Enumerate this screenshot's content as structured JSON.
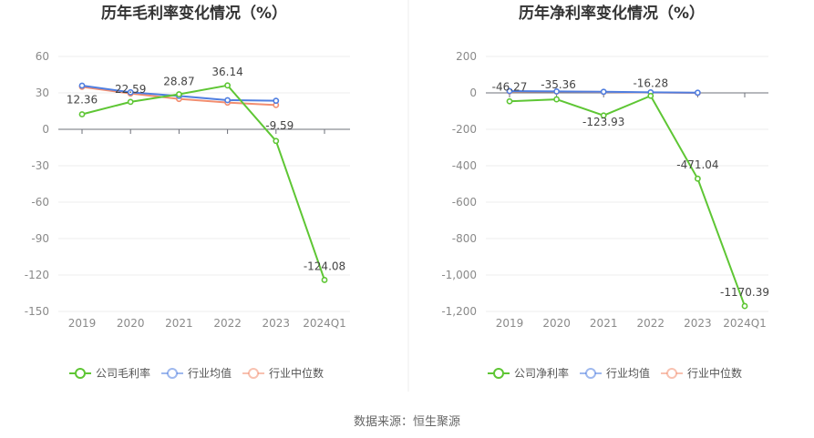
{
  "chart_data": [
    {
      "type": "line",
      "title": "历年毛利率变化情况（%）",
      "categories": [
        "2019",
        "2020",
        "2021",
        "2022",
        "2023",
        "2024Q1"
      ],
      "ylim": [
        -150,
        60
      ],
      "yticks": [
        60,
        30,
        0,
        -30,
        -60,
        -90,
        -120,
        -150
      ],
      "grid": true,
      "legend_position": "bottom",
      "series": [
        {
          "name": "公司毛利率",
          "color": "#5ec634",
          "values": [
            12.36,
            22.59,
            28.87,
            36.14,
            -9.59,
            -124.08
          ],
          "labels": [
            "12.36",
            "22.59",
            "28.87",
            "36.14",
            "-9.59",
            "-124.08"
          ]
        },
        {
          "name": "行业均值",
          "color": "#4f7ee0",
          "values": [
            36.0,
            30.5,
            27.5,
            24.0,
            23.5,
            null
          ]
        },
        {
          "name": "行业中位数",
          "color": "#f28e70",
          "values": [
            35.0,
            29.5,
            25.0,
            22.0,
            20.0,
            null
          ]
        }
      ]
    },
    {
      "type": "line",
      "title": "历年净利率变化情况（%）",
      "categories": [
        "2019",
        "2020",
        "2021",
        "2022",
        "2023",
        "2024Q1"
      ],
      "ylim": [
        -1200,
        200
      ],
      "yticks": [
        200,
        0,
        -200,
        -400,
        -600,
        -800,
        -1000,
        -1200
      ],
      "ytick_labels": [
        "200",
        "0",
        "-200",
        "-400",
        "-600",
        "-800",
        "-1,000",
        "-1,200"
      ],
      "grid": true,
      "legend_position": "bottom",
      "series": [
        {
          "name": "公司净利率",
          "color": "#5ec634",
          "values": [
            -46.27,
            -35.36,
            -123.93,
            -16.28,
            -471.04,
            -1170.39
          ],
          "labels": [
            "-46.27",
            "-35.36",
            "-123.93",
            "-16.28",
            "-471.04",
            "-1170.39"
          ]
        },
        {
          "name": "行业均值",
          "color": "#4f7ee0",
          "values": [
            10,
            8,
            6,
            3,
            1,
            null
          ]
        },
        {
          "name": "行业中位数",
          "color": "#f28e70",
          "values": [
            8,
            7,
            5,
            2,
            0,
            null
          ]
        }
      ]
    }
  ],
  "footer": {
    "source": "数据来源：恒生聚源"
  }
}
